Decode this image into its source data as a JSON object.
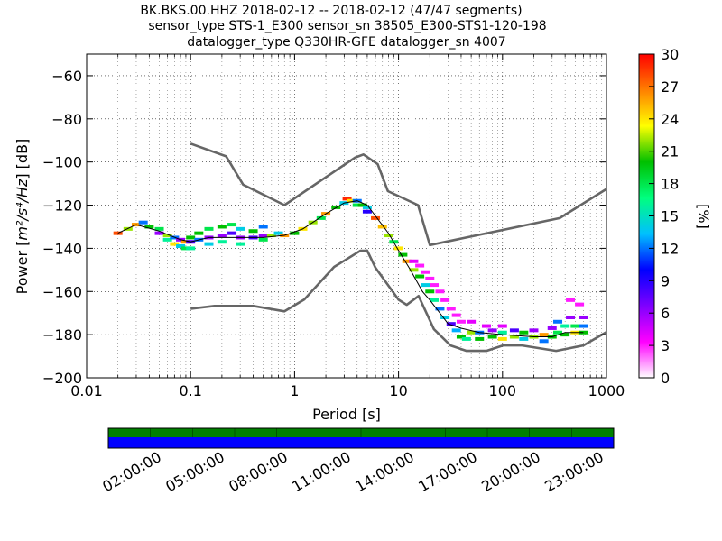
{
  "chart_data": {
    "type": "heatmap",
    "title_lines": [
      "BK.BKS.00.HHZ   2018-02-12 -- 2018-02-12  (47/47 segments)",
      "sensor_type STS-1_E300 sensor_sn 38505_E300-STS1-120-198",
      "datalogger_type Q330HR-GFE datalogger_sn 4007"
    ],
    "xlabel": "Period [s]",
    "ylabel_prefix": "Power [",
    "ylabel_unit": "m²/s⁴/Hz",
    "ylabel_suffix": "] [dB]",
    "x_scale": "log",
    "xlim": [
      0.01,
      1000
    ],
    "ylim": [
      -200,
      -50
    ],
    "x_ticks": [
      {
        "value": 0.01,
        "label": "0.01"
      },
      {
        "value": 0.1,
        "label": "0.1"
      },
      {
        "value": 1,
        "label": "1"
      },
      {
        "value": 10,
        "label": "10"
      },
      {
        "value": 100,
        "label": "100"
      },
      {
        "value": 1000,
        "label": "1000"
      }
    ],
    "y_ticks": [
      {
        "value": -60,
        "label": "−60"
      },
      {
        "value": -80,
        "label": "−80"
      },
      {
        "value": -100,
        "label": "−100"
      },
      {
        "value": -120,
        "label": "−120"
      },
      {
        "value": -140,
        "label": "−140"
      },
      {
        "value": -160,
        "label": "−160"
      },
      {
        "value": -180,
        "label": "−180"
      },
      {
        "value": -200,
        "label": "−200"
      }
    ],
    "grid": true,
    "colorbar": {
      "label": "[%]",
      "min": 0,
      "max": 30,
      "ticks": [
        {
          "value": 0,
          "label": "0"
        },
        {
          "value": 3,
          "label": "3"
        },
        {
          "value": 6,
          "label": "6"
        },
        {
          "value": 9,
          "label": "9"
        },
        {
          "value": 12,
          "label": "12"
        },
        {
          "value": 15,
          "label": "15"
        },
        {
          "value": 18,
          "label": "18"
        },
        {
          "value": 21,
          "label": "21"
        },
        {
          "value": 24,
          "label": "24"
        },
        {
          "value": 27,
          "label": "27"
        },
        {
          "value": 30,
          "label": "30"
        }
      ],
      "colors": [
        "#ffffff",
        "#ff00ff",
        "#7f00ff",
        "#0000ff",
        "#00c0ff",
        "#00ff7f",
        "#00c000",
        "#ffff00",
        "#ff8000",
        "#ff0000"
      ]
    },
    "noise_model_high": {
      "x": [
        0.1,
        0.22,
        0.32,
        0.8,
        3.8,
        4.6,
        6.3,
        7.9,
        15.4,
        20,
        354.8,
        1000
      ],
      "y": [
        -91.5,
        -97.4,
        -110.5,
        -120,
        -98,
        -96.5,
        -101,
        -113.5,
        -120,
        -138.5,
        -126,
        -112.5
      ]
    },
    "noise_model_low": {
      "x": [
        0.1,
        0.17,
        0.4,
        0.8,
        1.24,
        2.4,
        4.3,
        5,
        6,
        10,
        12,
        15.6,
        21.9,
        31.6,
        45,
        70,
        101,
        154,
        328,
        600,
        1000
      ],
      "y": [
        -168,
        -166.7,
        -166.7,
        -169.2,
        -163.7,
        -148.6,
        -141.1,
        -141.1,
        -149,
        -163.8,
        -166.2,
        -162.1,
        -177.5,
        -185,
        -187.5,
        -187.5,
        -185,
        -185,
        -187.5,
        -185,
        -178.8
      ]
    },
    "median_line": {
      "x": [
        0.02,
        0.03,
        0.05,
        0.08,
        0.1,
        0.15,
        0.2,
        0.3,
        0.5,
        0.8,
        1.2,
        2,
        3,
        4,
        5,
        6,
        8,
        10,
        13,
        17,
        20,
        25,
        30,
        40,
        60,
        100,
        200,
        300,
        400,
        500,
        600
      ],
      "y": [
        -133,
        -129,
        -132,
        -136,
        -137,
        -135,
        -135,
        -135,
        -135,
        -134,
        -131,
        -124,
        -119,
        -118,
        -120,
        -125,
        -133,
        -141,
        -150,
        -160,
        -164,
        -170,
        -175,
        -177,
        -179,
        -180,
        -181,
        -181,
        -179,
        -179,
        -179
      ]
    },
    "pdf_points": [
      {
        "x": 0.02,
        "y": -133,
        "p": 28
      },
      {
        "x": 0.025,
        "y": -131,
        "p": 22
      },
      {
        "x": 0.03,
        "y": -129,
        "p": 26
      },
      {
        "x": 0.035,
        "y": -128,
        "p": 12
      },
      {
        "x": 0.04,
        "y": -130,
        "p": 20
      },
      {
        "x": 0.05,
        "y": -131,
        "p": 18
      },
      {
        "x": 0.05,
        "y": -133,
        "p": 6
      },
      {
        "x": 0.06,
        "y": -134,
        "p": 22
      },
      {
        "x": 0.06,
        "y": -136,
        "p": 16
      },
      {
        "x": 0.07,
        "y": -135,
        "p": 12
      },
      {
        "x": 0.07,
        "y": -138,
        "p": 24
      },
      {
        "x": 0.08,
        "y": -136,
        "p": 6
      },
      {
        "x": 0.08,
        "y": -139,
        "p": 14
      },
      {
        "x": 0.09,
        "y": -137,
        "p": 26
      },
      {
        "x": 0.09,
        "y": -140,
        "p": 18
      },
      {
        "x": 0.1,
        "y": -137,
        "p": 8
      },
      {
        "x": 0.1,
        "y": -135,
        "p": 20
      },
      {
        "x": 0.1,
        "y": -140,
        "p": 16
      },
      {
        "x": 0.12,
        "y": -136,
        "p": 12
      },
      {
        "x": 0.12,
        "y": -133,
        "p": 20
      },
      {
        "x": 0.15,
        "y": -135,
        "p": 6
      },
      {
        "x": 0.15,
        "y": -131,
        "p": 18
      },
      {
        "x": 0.15,
        "y": -138,
        "p": 14
      },
      {
        "x": 0.2,
        "y": -134,
        "p": 6
      },
      {
        "x": 0.2,
        "y": -130,
        "p": 20
      },
      {
        "x": 0.2,
        "y": -137,
        "p": 16
      },
      {
        "x": 0.25,
        "y": -133,
        "p": 8
      },
      {
        "x": 0.25,
        "y": -129,
        "p": 18
      },
      {
        "x": 0.3,
        "y": -135,
        "p": 6
      },
      {
        "x": 0.3,
        "y": -131,
        "p": 14
      },
      {
        "x": 0.3,
        "y": -138,
        "p": 16
      },
      {
        "x": 0.4,
        "y": -135,
        "p": 8
      },
      {
        "x": 0.4,
        "y": -132,
        "p": 20
      },
      {
        "x": 0.5,
        "y": -134,
        "p": 6
      },
      {
        "x": 0.5,
        "y": -130,
        "p": 12
      },
      {
        "x": 0.5,
        "y": -136,
        "p": 18
      },
      {
        "x": 0.6,
        "y": -134,
        "p": 22
      },
      {
        "x": 0.7,
        "y": -133,
        "p": 14
      },
      {
        "x": 0.8,
        "y": -134,
        "p": 26
      },
      {
        "x": 1,
        "y": -133,
        "p": 20
      },
      {
        "x": 1.2,
        "y": -131,
        "p": 24
      },
      {
        "x": 1.5,
        "y": -128,
        "p": 22
      },
      {
        "x": 1.8,
        "y": -126,
        "p": 18
      },
      {
        "x": 2,
        "y": -124,
        "p": 26
      },
      {
        "x": 2.5,
        "y": -121,
        "p": 20
      },
      {
        "x": 3,
        "y": -119,
        "p": 14
      },
      {
        "x": 3.2,
        "y": -117,
        "p": 29
      },
      {
        "x": 3.5,
        "y": -118,
        "p": 24
      },
      {
        "x": 4,
        "y": -118,
        "p": 12
      },
      {
        "x": 4,
        "y": -120,
        "p": 18
      },
      {
        "x": 4.5,
        "y": -120,
        "p": 20
      },
      {
        "x": 5,
        "y": -121,
        "p": 14
      },
      {
        "x": 5,
        "y": -123,
        "p": 9
      },
      {
        "x": 6,
        "y": -126,
        "p": 28
      },
      {
        "x": 7,
        "y": -130,
        "p": 25
      },
      {
        "x": 8,
        "y": -134,
        "p": 22
      },
      {
        "x": 9,
        "y": -137,
        "p": 18
      },
      {
        "x": 10,
        "y": -140,
        "p": 24
      },
      {
        "x": 11,
        "y": -143,
        "p": 20
      },
      {
        "x": 12,
        "y": -146,
        "p": 26
      },
      {
        "x": 14,
        "y": -150,
        "p": 22
      },
      {
        "x": 14,
        "y": -146,
        "p": 4
      },
      {
        "x": 16,
        "y": -153,
        "p": 20
      },
      {
        "x": 16,
        "y": -148,
        "p": 3
      },
      {
        "x": 18,
        "y": -157,
        "p": 14
      },
      {
        "x": 18,
        "y": -151,
        "p": 3
      },
      {
        "x": 20,
        "y": -160,
        "p": 20
      },
      {
        "x": 20,
        "y": -154,
        "p": 3
      },
      {
        "x": 22,
        "y": -164,
        "p": 16
      },
      {
        "x": 22,
        "y": -157,
        "p": 3
      },
      {
        "x": 25,
        "y": -168,
        "p": 12
      },
      {
        "x": 25,
        "y": -160,
        "p": 3
      },
      {
        "x": 28,
        "y": -172,
        "p": 14
      },
      {
        "x": 28,
        "y": -164,
        "p": 3
      },
      {
        "x": 32,
        "y": -175,
        "p": 8
      },
      {
        "x": 32,
        "y": -168,
        "p": 3
      },
      {
        "x": 36,
        "y": -178,
        "p": 13
      },
      {
        "x": 36,
        "y": -171,
        "p": 3
      },
      {
        "x": 40,
        "y": -181,
        "p": 20
      },
      {
        "x": 40,
        "y": -174,
        "p": 3
      },
      {
        "x": 45,
        "y": -182,
        "p": 16
      },
      {
        "x": 50,
        "y": -179,
        "p": 22
      },
      {
        "x": 50,
        "y": -174,
        "p": 4
      },
      {
        "x": 60,
        "y": -182,
        "p": 20
      },
      {
        "x": 60,
        "y": -179,
        "p": 12
      },
      {
        "x": 70,
        "y": -176,
        "p": 4
      },
      {
        "x": 80,
        "y": -181,
        "p": 20
      },
      {
        "x": 80,
        "y": -178,
        "p": 6
      },
      {
        "x": 100,
        "y": -182,
        "p": 24
      },
      {
        "x": 100,
        "y": -179,
        "p": 16
      },
      {
        "x": 100,
        "y": -176,
        "p": 4
      },
      {
        "x": 130,
        "y": -181,
        "p": 22
      },
      {
        "x": 130,
        "y": -178,
        "p": 8
      },
      {
        "x": 160,
        "y": -182,
        "p": 14
      },
      {
        "x": 160,
        "y": -179,
        "p": 20
      },
      {
        "x": 200,
        "y": -181,
        "p": 22
      },
      {
        "x": 200,
        "y": -178,
        "p": 6
      },
      {
        "x": 250,
        "y": -180,
        "p": 26
      },
      {
        "x": 250,
        "y": -183,
        "p": 12
      },
      {
        "x": 300,
        "y": -181,
        "p": 20
      },
      {
        "x": 300,
        "y": -177,
        "p": 6
      },
      {
        "x": 340,
        "y": -174,
        "p": 12
      },
      {
        "x": 340,
        "y": -179,
        "p": 18
      },
      {
        "x": 400,
        "y": -176,
        "p": 16
      },
      {
        "x": 400,
        "y": -180,
        "p": 20
      },
      {
        "x": 450,
        "y": -164,
        "p": 3
      },
      {
        "x": 450,
        "y": -172,
        "p": 6
      },
      {
        "x": 500,
        "y": -176,
        "p": 18
      },
      {
        "x": 500,
        "y": -179,
        "p": 24
      },
      {
        "x": 550,
        "y": -166,
        "p": 3
      },
      {
        "x": 600,
        "y": -172,
        "p": 6
      },
      {
        "x": 600,
        "y": -176,
        "p": 12
      },
      {
        "x": 600,
        "y": -179,
        "p": 20
      }
    ]
  },
  "timeline": {
    "time_labels": [
      "02:00:00",
      "05:00:00",
      "08:00:00",
      "11:00:00",
      "14:00:00",
      "17:00:00",
      "20:00:00",
      "23:00:00"
    ],
    "top_color": "#008000",
    "bottom_color": "#0000ff"
  }
}
